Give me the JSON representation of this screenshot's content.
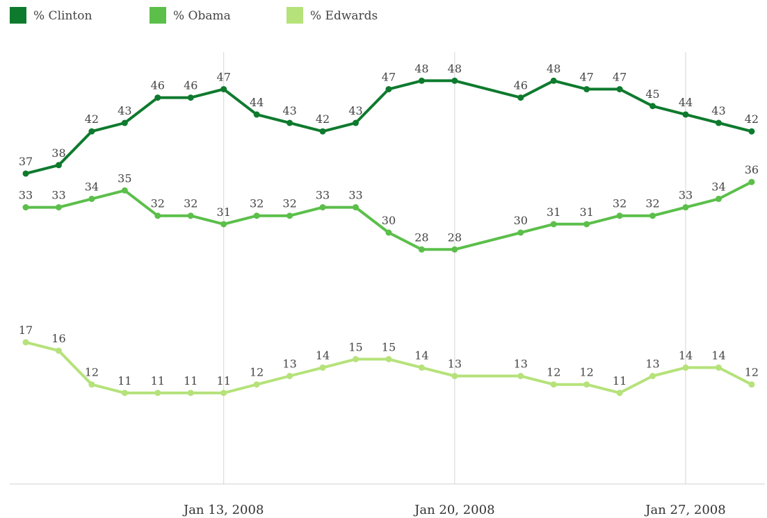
{
  "chart_data": {
    "type": "line",
    "title": "",
    "xlabel": "",
    "ylabel": "",
    "x_ticks": [
      "Jan 13, 2008",
      "Jan 20, 2008",
      "Jan 27, 2008"
    ],
    "x_tick_positions": [
      6,
      13,
      20
    ],
    "ylim": [
      0,
      55
    ],
    "grid": "vertical lines at x ticks",
    "legend": "top-left",
    "series": [
      {
        "name": "% Clinton",
        "color": "#0e7a2e",
        "values": [
          37,
          38,
          42,
          43,
          46,
          46,
          47,
          44,
          43,
          42,
          43,
          47,
          48,
          48,
          null,
          46,
          48,
          47,
          47,
          45,
          44,
          43,
          42
        ]
      },
      {
        "name": "% Obama",
        "color": "#5bbf4a",
        "values": [
          33,
          33,
          34,
          35,
          32,
          32,
          31,
          32,
          32,
          33,
          33,
          30,
          28,
          28,
          null,
          30,
          31,
          31,
          32,
          32,
          33,
          34,
          36
        ]
      },
      {
        "name": "% Edwards",
        "color": "#b5e27a",
        "values": [
          17,
          16,
          12,
          11,
          11,
          11,
          11,
          12,
          13,
          14,
          15,
          15,
          14,
          13,
          null,
          13,
          12,
          12,
          11,
          13,
          14,
          14,
          12
        ]
      }
    ]
  }
}
